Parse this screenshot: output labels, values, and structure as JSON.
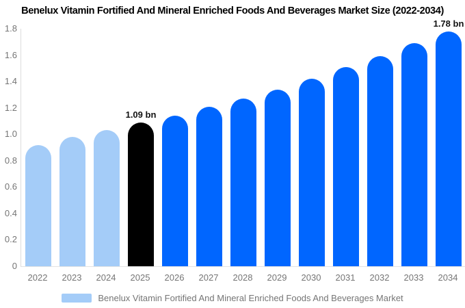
{
  "title": "Benelux Vitamin Fortified And Mineral Enriched Foods And Beverages Market Size (2022-2034)",
  "legend": {
    "label": "Benelux Vitamin Fortified And Mineral Enriched Foods And Beverages Market",
    "swatch_color": "#a4ccf8"
  },
  "colors": {
    "historical": "#a4ccf8",
    "highlight": "#000000",
    "forecast": "#0066ff",
    "axis_line": "#dcdcdc",
    "tick_text": "#757575",
    "annotation_text": "#111111"
  },
  "chart_data": {
    "type": "bar",
    "title": "Benelux Vitamin Fortified And Mineral Enriched Foods And Beverages Market Size (2022-2034)",
    "series_name": "Benelux Vitamin Fortified And Mineral Enriched Foods And Beverages Market",
    "unit": "bn",
    "categories": [
      "2022",
      "2023",
      "2024",
      "2025",
      "2026",
      "2027",
      "2028",
      "2029",
      "2030",
      "2031",
      "2032",
      "2033",
      "2034"
    ],
    "values": [
      0.92,
      0.98,
      1.03,
      1.09,
      1.14,
      1.21,
      1.27,
      1.34,
      1.42,
      1.51,
      1.59,
      1.69,
      1.78
    ],
    "bar_color_roles": [
      "historical",
      "historical",
      "historical",
      "highlight",
      "forecast",
      "forecast",
      "forecast",
      "forecast",
      "forecast",
      "forecast",
      "forecast",
      "forecast",
      "forecast"
    ],
    "annotations": [
      {
        "category": "2025",
        "text": "1.09 bn"
      },
      {
        "category": "2034",
        "text": "1.78 bn"
      }
    ],
    "xlabel": "",
    "ylabel": "",
    "ylim": [
      0,
      1.8
    ],
    "ytick_labels": [
      "0",
      "0.2",
      "0.4",
      "0.6",
      "0.8",
      "1.0",
      "1.2",
      "1.4",
      "1.6",
      "1.8"
    ],
    "grid": false,
    "legend_position": "bottom"
  }
}
